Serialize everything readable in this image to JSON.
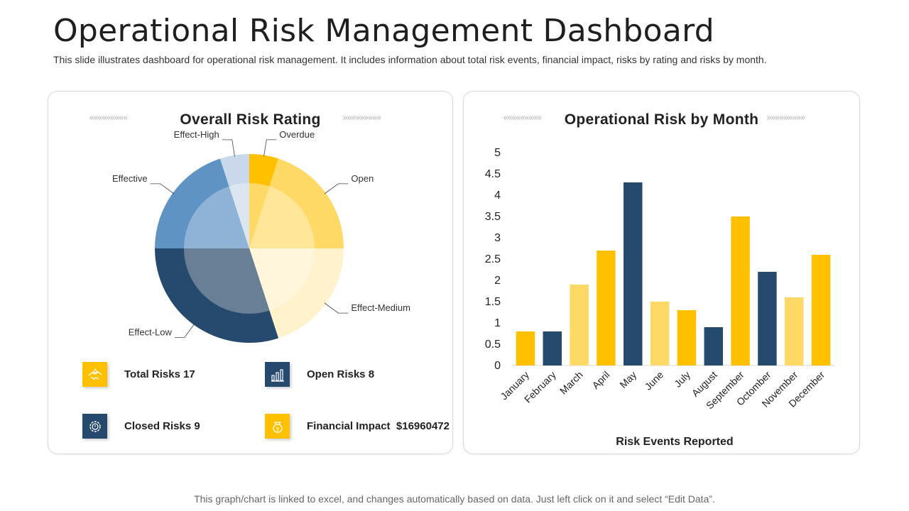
{
  "header": {
    "title": "Operational Risk Management Dashboard",
    "subtitle": "This slide illustrates dashboard for operational risk management. It includes information about total risk events, financial impact, risks by rating and risks by month."
  },
  "left_card": {
    "title": "Overall Risk Rating",
    "chevrons_left": "«««««««««",
    "chevrons_right": "»»»»»»»»»",
    "stats": [
      {
        "label": "Total Risks 17",
        "icon": "handshake-risk-icon",
        "color": "#FFC000"
      },
      {
        "label": "Open Risks 8",
        "icon": "growth-chart-icon",
        "color": "#264A6E"
      },
      {
        "label": "Closed Risks 9",
        "icon": "gear-warning-icon",
        "color": "#264A6E"
      },
      {
        "label": "Financial Impact",
        "value": "$16960472",
        "icon": "money-bag-icon",
        "color": "#FFC000"
      }
    ]
  },
  "right_card": {
    "title": "Operational Risk by Month",
    "chevrons_left": "«««««««««",
    "chevrons_right": "»»»»»»»»»"
  },
  "footer": {
    "text": "This graph/chart is linked to excel, and changes automatically based on data. Just left click on it and select “Edit Data”."
  },
  "chart_data": [
    {
      "type": "pie",
      "title": "Overall Risk Rating",
      "slices": [
        {
          "name": "Overdue",
          "value": 5,
          "color": "#FFC000",
          "inner": "#FFD966"
        },
        {
          "name": "Open",
          "value": 20,
          "color": "#FFD966",
          "inner": "#FFE699"
        },
        {
          "name": "Effect-Medium",
          "value": 20,
          "color": "#FFF2CC",
          "inner": "#FFF6DB"
        },
        {
          "name": "Effect-Low",
          "value": 30,
          "color": "#264A6E",
          "inner": "#687F96"
        },
        {
          "name": "Effective",
          "value": 20,
          "color": "#5F93C4",
          "inner": "#8FB3D6"
        },
        {
          "name": "Effect-High",
          "value": 5,
          "color": "#C9D8EA",
          "inner": "#DCE6F1"
        }
      ]
    },
    {
      "type": "bar",
      "title": "Operational Risk by Month",
      "categories": [
        "January",
        "February",
        "March",
        "April",
        "May",
        "June",
        "July",
        "August",
        "September",
        "Octomber",
        "November",
        "December"
      ],
      "values": [
        0.8,
        0.8,
        1.9,
        2.7,
        4.3,
        1.5,
        1.3,
        0.9,
        3.5,
        2.2,
        1.6,
        2.6
      ],
      "colors": [
        "#FFC000",
        "#264A6E",
        "#FFD966",
        "#FFC000",
        "#264A6E",
        "#FFD966",
        "#FFC000",
        "#264A6E",
        "#FFC000",
        "#264A6E",
        "#FFD966",
        "#FFC000"
      ],
      "yticks": [
        "0",
        "0.5",
        "1",
        "1.5",
        "2",
        "2.5",
        "3",
        "3.5",
        "4",
        "4.5",
        "5"
      ],
      "ylim": [
        0,
        5
      ],
      "xlabel": "Risk Events Reported",
      "ylabel": "",
      "grid": false
    }
  ]
}
